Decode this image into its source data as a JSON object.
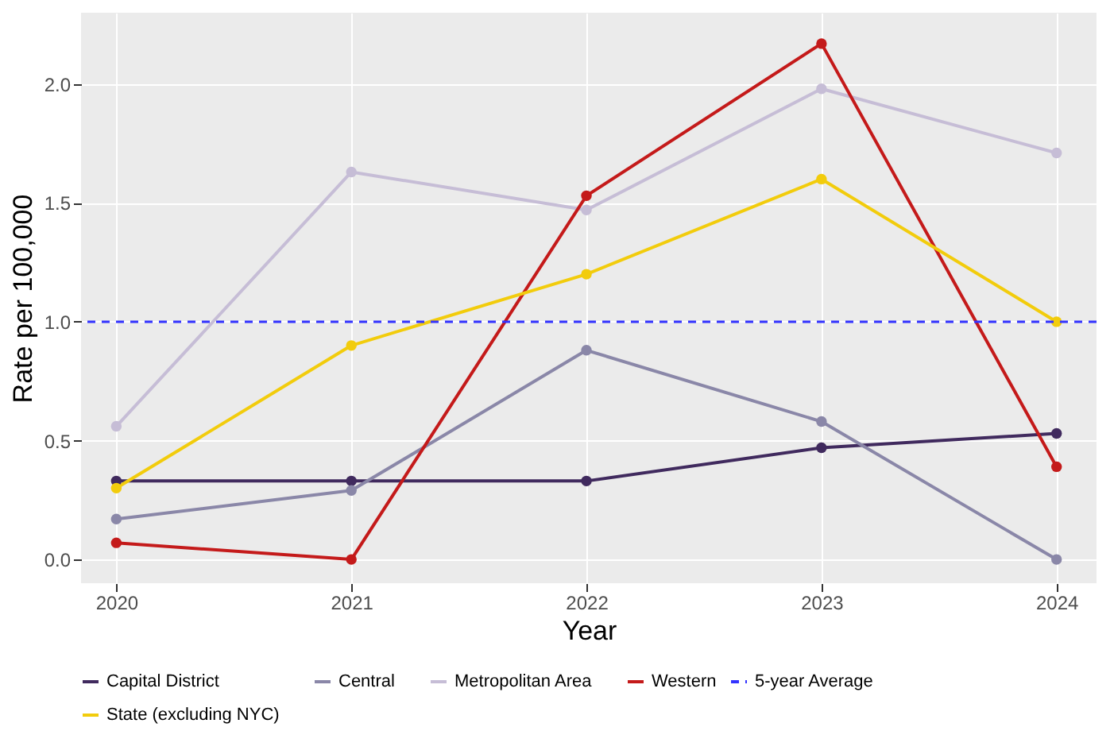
{
  "chart_data": {
    "type": "line",
    "xlabel": "Year",
    "ylabel": "Rate per 100,000",
    "x": [
      2020,
      2021,
      2022,
      2023,
      2024
    ],
    "series": [
      {
        "name": "Capital District",
        "color": "#402a5e",
        "values": [
          0.33,
          0.33,
          0.33,
          0.47,
          0.53
        ]
      },
      {
        "name": "Central",
        "color": "#8a87a8",
        "values": [
          0.17,
          0.29,
          0.88,
          0.58,
          0.0
        ]
      },
      {
        "name": "Metropolitan Area",
        "color": "#c6bdd6",
        "values": [
          0.56,
          1.63,
          1.47,
          1.98,
          1.71
        ]
      },
      {
        "name": "Western",
        "color": "#c41a1a",
        "values": [
          0.07,
          0.0,
          1.53,
          2.17,
          0.39
        ]
      },
      {
        "name": "State (excluding NYC)",
        "color": "#f2cc0c",
        "values": [
          0.3,
          0.9,
          1.2,
          1.6,
          1.0
        ]
      }
    ],
    "ref_lines": [
      {
        "axis": "y",
        "value": 1.0,
        "label": "5-year Average",
        "color": "#3333ff",
        "line_style": "dashed"
      }
    ],
    "xlim": [
      2019.85,
      2024.17
    ],
    "xticks": [
      2020,
      2021,
      2022,
      2023,
      2024
    ],
    "ylim": [
      -0.1,
      2.3
    ],
    "yticks": [
      {
        "value": 0,
        "label": "0.0"
      },
      {
        "value": 0.5,
        "label": "0.5"
      },
      {
        "value": 1,
        "label": "1.0"
      },
      {
        "value": 1.5,
        "label": "1.5"
      },
      {
        "value": 2,
        "label": "2.0"
      }
    ],
    "grid": true,
    "legend": "bottom",
    "marker": "circle",
    "line_style": "solid"
  }
}
